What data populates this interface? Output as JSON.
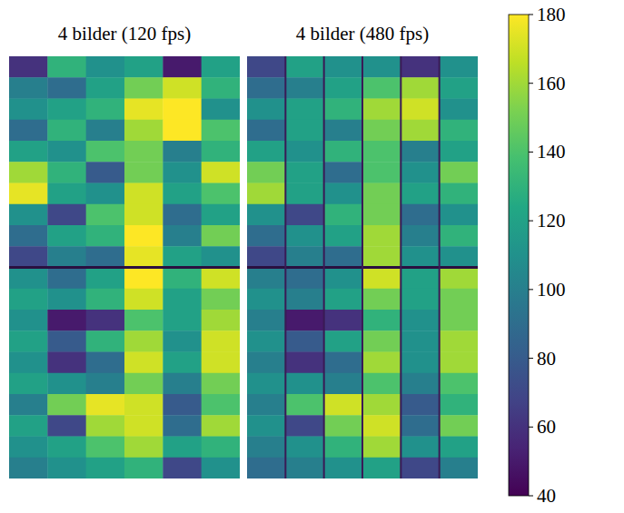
{
  "chart_data": {
    "type": "heatmap",
    "panels": [
      {
        "title": "4 bilder (120 fps)",
        "cells": [
          [
            60,
            130,
            110,
            120,
            50,
            120
          ],
          [
            100,
            90,
            120,
            150,
            170,
            130
          ],
          [
            110,
            120,
            130,
            175,
            180,
            110
          ],
          [
            90,
            130,
            100,
            160,
            180,
            140
          ],
          [
            120,
            110,
            140,
            150,
            100,
            130
          ],
          [
            160,
            130,
            80,
            150,
            110,
            170
          ],
          [
            175,
            120,
            110,
            170,
            120,
            140
          ],
          [
            110,
            70,
            140,
            170,
            90,
            120
          ],
          [
            90,
            120,
            130,
            180,
            100,
            150
          ],
          [
            70,
            100,
            90,
            175,
            120,
            110
          ],
          [
            110,
            90,
            120,
            180,
            130,
            170
          ],
          [
            120,
            110,
            130,
            170,
            120,
            150
          ],
          [
            110,
            50,
            60,
            140,
            120,
            160
          ],
          [
            120,
            80,
            130,
            160,
            110,
            170
          ],
          [
            110,
            60,
            90,
            170,
            120,
            170
          ],
          [
            120,
            110,
            100,
            150,
            100,
            150
          ],
          [
            100,
            150,
            175,
            170,
            80,
            140
          ],
          [
            120,
            70,
            160,
            170,
            90,
            160
          ],
          [
            110,
            120,
            140,
            160,
            120,
            130
          ],
          [
            100,
            110,
            120,
            130,
            70,
            110
          ]
        ]
      },
      {
        "title": "4 bilder (480 fps)",
        "cells": [
          [
            70,
            120,
            110,
            110,
            60,
            110
          ],
          [
            90,
            100,
            120,
            140,
            160,
            120
          ],
          [
            110,
            120,
            130,
            160,
            170,
            110
          ],
          [
            90,
            120,
            100,
            150,
            160,
            130
          ],
          [
            120,
            110,
            130,
            140,
            100,
            120
          ],
          [
            150,
            120,
            90,
            140,
            110,
            150
          ],
          [
            160,
            120,
            110,
            150,
            120,
            130
          ],
          [
            110,
            70,
            130,
            150,
            90,
            110
          ],
          [
            90,
            110,
            120,
            160,
            100,
            130
          ],
          [
            70,
            100,
            90,
            160,
            110,
            110
          ],
          [
            100,
            90,
            110,
            170,
            120,
            160
          ],
          [
            110,
            100,
            120,
            150,
            120,
            150
          ],
          [
            100,
            50,
            60,
            130,
            110,
            150
          ],
          [
            110,
            80,
            120,
            150,
            110,
            160
          ],
          [
            100,
            60,
            90,
            160,
            110,
            160
          ],
          [
            110,
            110,
            100,
            140,
            100,
            140
          ],
          [
            100,
            140,
            170,
            160,
            80,
            130
          ],
          [
            110,
            70,
            150,
            170,
            90,
            150
          ],
          [
            100,
            110,
            130,
            160,
            110,
            120
          ],
          [
            90,
            100,
            110,
            120,
            70,
            100
          ]
        ]
      }
    ],
    "colorbar_range": [
      40,
      180
    ],
    "colorbar_ticks": [
      40,
      60,
      80,
      100,
      120,
      140,
      160,
      180
    ]
  }
}
